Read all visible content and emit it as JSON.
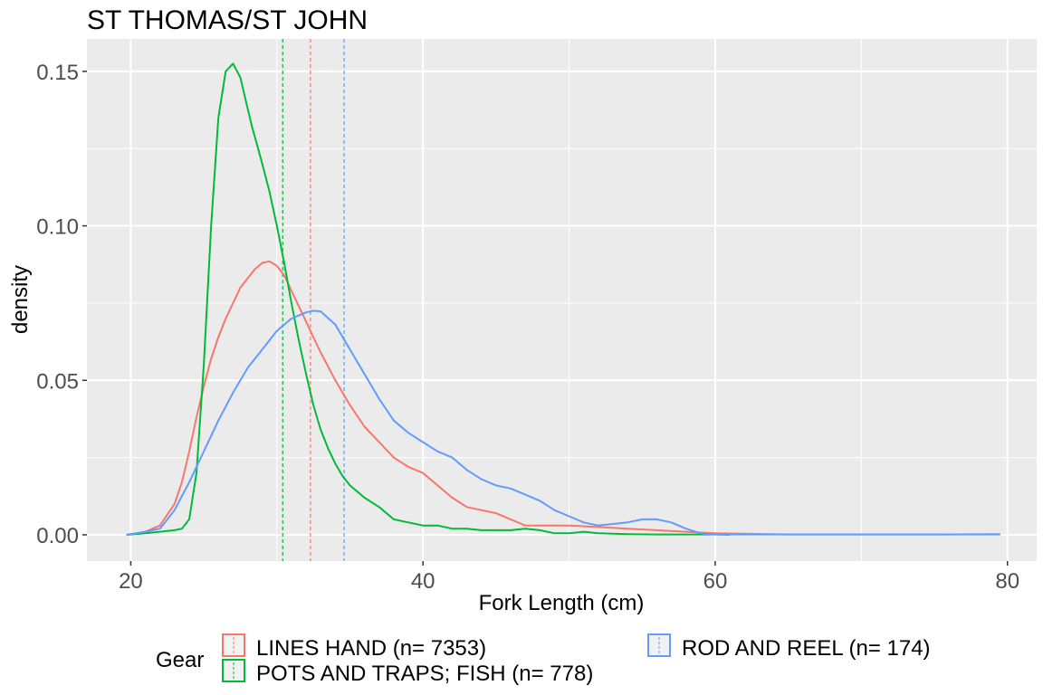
{
  "chart_data": {
    "type": "line",
    "subtype": "density",
    "title": "ST THOMAS/ST JOHN",
    "xlabel": "Fork Length (cm)",
    "ylabel": "density",
    "xlim": [
      17,
      82
    ],
    "ylim": [
      -0.0085,
      0.1605
    ],
    "x_ticks": [
      20,
      40,
      60,
      80
    ],
    "x_tick_labels": [
      "20",
      "40",
      "60",
      "80"
    ],
    "y_ticks": [
      0,
      0.05,
      0.1,
      0.15
    ],
    "y_tick_labels": [
      "0.00",
      "0.05",
      "0.10",
      "0.15"
    ],
    "grid": true,
    "legend_position": "bottom",
    "legend_title": "Gear",
    "series": [
      {
        "name": "LINES HAND (n= 7353)",
        "color": "#F8766D",
        "mean_line": 32.3,
        "x": [
          19.7,
          21,
          22,
          23,
          23.5,
          24,
          24.5,
          25,
          25.5,
          26,
          26.5,
          27,
          27.5,
          28,
          28.5,
          29,
          29.5,
          30,
          30.5,
          31,
          31.5,
          32,
          32.5,
          33,
          34,
          35,
          36,
          37,
          38,
          39,
          40,
          41,
          42,
          43,
          44,
          45,
          46,
          47,
          48,
          50,
          52,
          54,
          56,
          58,
          60,
          65,
          70,
          75,
          79.5
        ],
        "y": [
          0.0,
          0.001,
          0.003,
          0.01,
          0.017,
          0.027,
          0.038,
          0.048,
          0.057,
          0.064,
          0.07,
          0.075,
          0.08,
          0.083,
          0.086,
          0.088,
          0.0885,
          0.087,
          0.084,
          0.079,
          0.074,
          0.069,
          0.064,
          0.059,
          0.05,
          0.042,
          0.035,
          0.03,
          0.025,
          0.022,
          0.02,
          0.016,
          0.012,
          0.009,
          0.008,
          0.007,
          0.005,
          0.003,
          0.003,
          0.003,
          0.0025,
          0.002,
          0.0015,
          0.001,
          0.0005,
          0.0001,
          0.0001,
          0.0001,
          0.0002
        ]
      },
      {
        "name": "POTS AND TRAPS; FISH (n= 778)",
        "color": "#00BA38",
        "mean_line": 30.4,
        "x": [
          19.7,
          21,
          22,
          23,
          23.5,
          24,
          24.5,
          25,
          25.5,
          26,
          26.5,
          27,
          27.5,
          28,
          28.3,
          28.6,
          29,
          29.5,
          30,
          30.5,
          31,
          31.5,
          32,
          32.5,
          33,
          33.5,
          34,
          34.5,
          35,
          35.5,
          36,
          37,
          38,
          39,
          40,
          41,
          42,
          43,
          44,
          45,
          46,
          47,
          48,
          49,
          50,
          51,
          52,
          54,
          56,
          58,
          60,
          61
        ],
        "y": [
          0.0,
          0.0005,
          0.001,
          0.0015,
          0.002,
          0.005,
          0.02,
          0.055,
          0.1,
          0.135,
          0.15,
          0.1525,
          0.148,
          0.138,
          0.132,
          0.127,
          0.12,
          0.111,
          0.1,
          0.088,
          0.075,
          0.063,
          0.052,
          0.042,
          0.034,
          0.028,
          0.023,
          0.019,
          0.016,
          0.014,
          0.012,
          0.009,
          0.005,
          0.004,
          0.003,
          0.003,
          0.002,
          0.002,
          0.0015,
          0.0015,
          0.0015,
          0.002,
          0.0015,
          0.0005,
          0.0005,
          0.001,
          0.0005,
          0.0002,
          0.0001,
          0.0001,
          0.0001,
          0.0
        ]
      },
      {
        "name": "ROD AND REEL (n= 174)",
        "color": "#619CFF",
        "mean_line": 34.6,
        "x": [
          19.7,
          21,
          22,
          23,
          24,
          25,
          26,
          27,
          28,
          29,
          30,
          31,
          32,
          32.5,
          33,
          34,
          35,
          36,
          37,
          38,
          39,
          40,
          41,
          42,
          43,
          44,
          45,
          46,
          47,
          48,
          49,
          50,
          51,
          52,
          53,
          54,
          55,
          56,
          57,
          58,
          59,
          60,
          65,
          70,
          75,
          79.5
        ],
        "y": [
          0.0,
          0.001,
          0.002,
          0.008,
          0.017,
          0.027,
          0.037,
          0.046,
          0.054,
          0.06,
          0.066,
          0.07,
          0.072,
          0.0725,
          0.0723,
          0.068,
          0.06,
          0.052,
          0.044,
          0.037,
          0.033,
          0.03,
          0.027,
          0.025,
          0.021,
          0.018,
          0.016,
          0.015,
          0.013,
          0.011,
          0.008,
          0.006,
          0.004,
          0.003,
          0.0035,
          0.004,
          0.005,
          0.005,
          0.004,
          0.002,
          0.0005,
          0.0001,
          0.0001,
          0.0001,
          0.0001,
          0.0001
        ]
      }
    ]
  }
}
